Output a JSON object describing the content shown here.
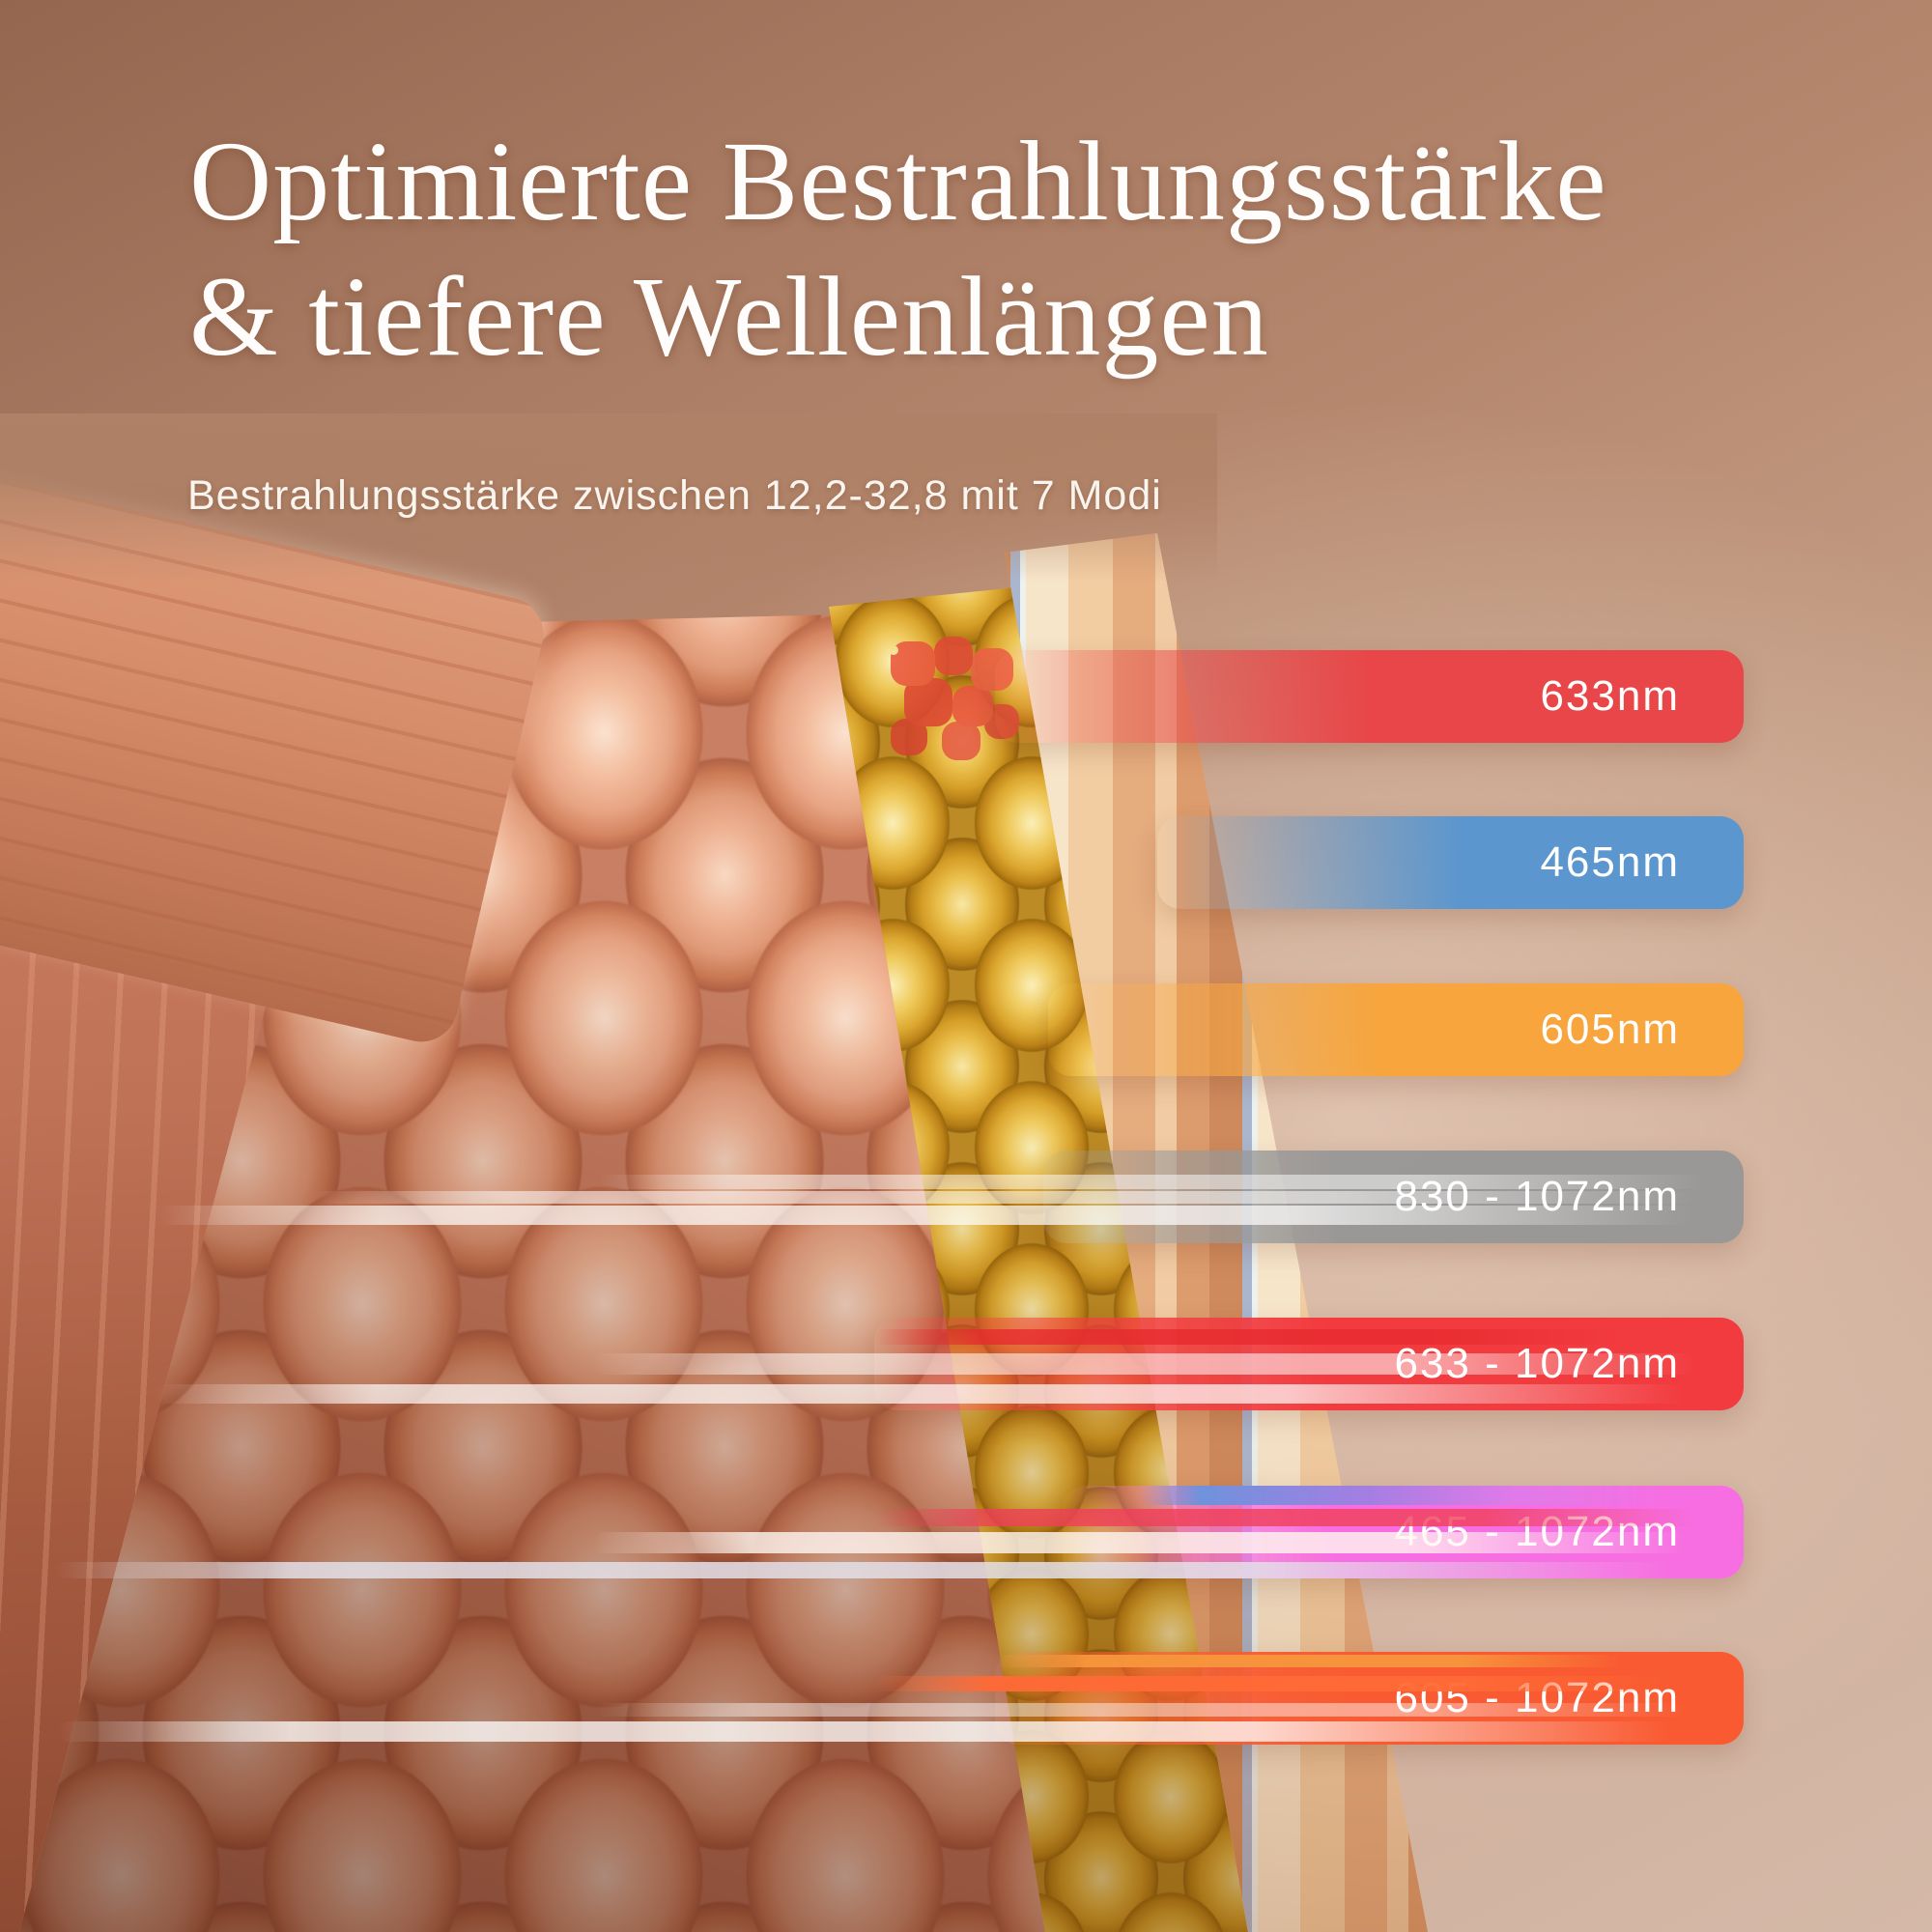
{
  "header": {
    "title_line1": "Optimierte Bestrahlungsstärke",
    "title_line2": "& tiefere Wellenlängen",
    "subtitle": "Bestrahlungsstärke zwischen 12,2-32,8 mit 7 Modi"
  },
  "bars": [
    {
      "label": "633nm",
      "color": "#e84648",
      "kind": "single"
    },
    {
      "label": "465nm",
      "color": "#5b96ce",
      "kind": "single"
    },
    {
      "label": "605nm",
      "color": "#f7a53c",
      "kind": "single"
    },
    {
      "label": "830 - 1072nm",
      "color": "#969696",
      "kind": "range"
    },
    {
      "label": "633 - 1072nm",
      "color": "#f23b3f",
      "kind": "range"
    },
    {
      "label": "465 - 1072nm",
      "color": "#f76ee2",
      "kind": "range"
    },
    {
      "label": "605 - 1072nm",
      "color": "#f95a31",
      "kind": "range"
    }
  ],
  "palette": {
    "label_text": "#ffffff",
    "title_text": "#fefdfb",
    "background_top_left": "#95664f",
    "background_top_right": "#b28467",
    "background_bottom_right": "#d5b9a8"
  }
}
